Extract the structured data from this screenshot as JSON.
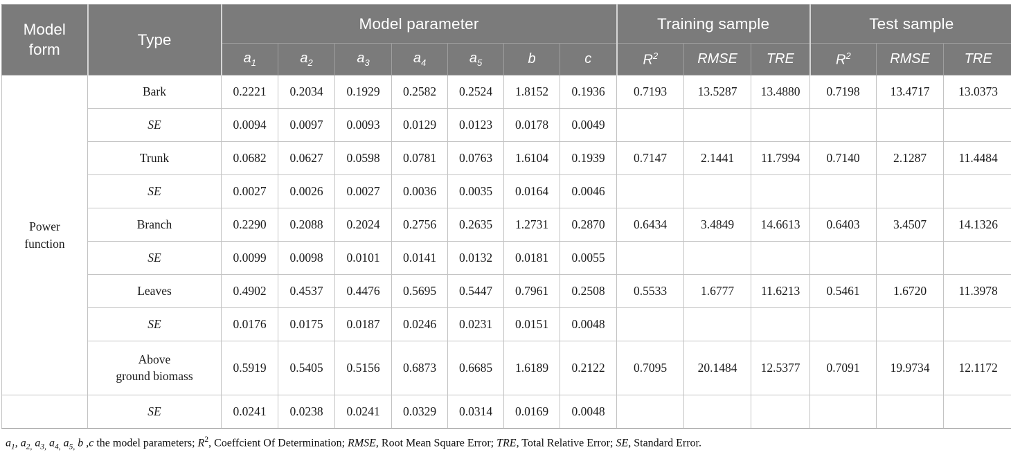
{
  "colors": {
    "header_bg": "#7b7b7b",
    "header_text": "#ffffff",
    "body_text": "#1b1b1b",
    "grid_line": "#c3c3c3"
  },
  "header": {
    "col1": "Model\nform",
    "col2": "Type",
    "groups": {
      "model_parameter": "Model parameter",
      "training_sample": "Training sample",
      "test_sample": "Test sample"
    },
    "param_columns": [
      {
        "base": "a",
        "sub": "1"
      },
      {
        "base": "a",
        "sub": "2"
      },
      {
        "base": "a",
        "sub": "3"
      },
      {
        "base": "a",
        "sub": "4"
      },
      {
        "base": "a",
        "sub": "5"
      },
      {
        "base": "b"
      },
      {
        "base": "c"
      }
    ],
    "training_columns": [
      {
        "base": "R",
        "sup": "2"
      },
      {
        "base": "RMSE"
      },
      {
        "base": "TRE"
      }
    ],
    "test_columns": [
      {
        "base": "R",
        "sup": "2"
      },
      {
        "base": "RMSE"
      },
      {
        "base": "TRE"
      }
    ]
  },
  "body": {
    "model_form_value": "Power\nfunction",
    "rows": [
      {
        "type": "Bark",
        "se": false,
        "tall": false,
        "params": [
          "0.2221",
          "0.2034",
          "0.1929",
          "0.2582",
          "0.2524",
          "1.8152",
          "0.1936"
        ],
        "training": [
          "0.7193",
          "13.5287",
          "13.4880"
        ],
        "test": [
          "0.7198",
          "13.4717",
          "13.0373"
        ]
      },
      {
        "type": "SE",
        "se": true,
        "tall": false,
        "params": [
          "0.0094",
          "0.0097",
          "0.0093",
          "0.0129",
          "0.0123",
          "0.0178",
          "0.0049"
        ],
        "training": [
          "",
          "",
          ""
        ],
        "test": [
          "",
          "",
          ""
        ]
      },
      {
        "type": "Trunk",
        "se": false,
        "tall": false,
        "params": [
          "0.0682",
          "0.0627",
          "0.0598",
          "0.0781",
          "0.0763",
          "1.6104",
          "0.1939"
        ],
        "training": [
          "0.7147",
          "2.1441",
          "11.7994"
        ],
        "test": [
          "0.7140",
          "2.1287",
          "11.4484"
        ]
      },
      {
        "type": "SE",
        "se": true,
        "tall": false,
        "params": [
          "0.0027",
          "0.0026",
          "0.0027",
          "0.0036",
          "0.0035",
          "0.0164",
          "0.0046"
        ],
        "training": [
          "",
          "",
          ""
        ],
        "test": [
          "",
          "",
          ""
        ]
      },
      {
        "type": "Branch",
        "se": false,
        "tall": false,
        "params": [
          "0.2290",
          "0.2088",
          "0.2024",
          "0.2756",
          "0.2635",
          "1.2731",
          "0.2870"
        ],
        "training": [
          "0.6434",
          "3.4849",
          "14.6613"
        ],
        "test": [
          "0.6403",
          "3.4507",
          "14.1326"
        ]
      },
      {
        "type": "SE",
        "se": true,
        "tall": false,
        "params": [
          "0.0099",
          "0.0098",
          "0.0101",
          "0.0141",
          "0.0132",
          "0.0181",
          "0.0055"
        ],
        "training": [
          "",
          "",
          ""
        ],
        "test": [
          "",
          "",
          ""
        ]
      },
      {
        "type": "Leaves",
        "se": false,
        "tall": false,
        "params": [
          "0.4902",
          "0.4537",
          "0.4476",
          "0.5695",
          "0.5447",
          "0.7961",
          "0.2508"
        ],
        "training": [
          "0.5533",
          "1.6777",
          "11.6213"
        ],
        "test": [
          "0.5461",
          "1.6720",
          "11.3978"
        ]
      },
      {
        "type": "SE",
        "se": true,
        "tall": false,
        "params": [
          "0.0176",
          "0.0175",
          "0.0187",
          "0.0246",
          "0.0231",
          "0.0151",
          "0.0048"
        ],
        "training": [
          "",
          "",
          ""
        ],
        "test": [
          "",
          "",
          ""
        ]
      },
      {
        "type": "Above\nground biomass",
        "se": false,
        "tall": true,
        "params": [
          "0.5919",
          "0.5405",
          "0.5156",
          "0.6873",
          "0.6685",
          "1.6189",
          "0.2122"
        ],
        "training": [
          "0.7095",
          "20.1484",
          "12.5377"
        ],
        "test": [
          "0.7091",
          "19.9734",
          "12.1172"
        ]
      },
      {
        "type": "SE",
        "se": true,
        "tall": false,
        "params": [
          "0.0241",
          "0.0238",
          "0.0241",
          "0.0329",
          "0.0314",
          "0.0169",
          "0.0048"
        ],
        "training": [
          "",
          "",
          ""
        ],
        "test": [
          "",
          "",
          ""
        ]
      }
    ]
  },
  "footnote": {
    "segments": [
      {
        "t": "a",
        "i": true
      },
      {
        "t": "1",
        "sub": true,
        "i": true
      },
      {
        "t": ", "
      },
      {
        "t": "a",
        "i": true
      },
      {
        "t": "2,",
        "sub": true,
        "i": true
      },
      {
        "t": " "
      },
      {
        "t": "a",
        "i": true
      },
      {
        "t": "3,",
        "sub": true,
        "i": true
      },
      {
        "t": " "
      },
      {
        "t": "a",
        "i": true
      },
      {
        "t": "4,",
        "sub": true,
        "i": true
      },
      {
        "t": " "
      },
      {
        "t": "a",
        "i": true
      },
      {
        "t": "5,",
        "sub": true,
        "i": true
      },
      {
        "t": " "
      },
      {
        "t": "b",
        "i": true
      },
      {
        "t": " ,"
      },
      {
        "t": "c",
        "i": true
      },
      {
        "t": " the model parameters; "
      },
      {
        "t": "R",
        "i": true
      },
      {
        "t": "2",
        "sup": true
      },
      {
        "t": ", Coeffcient Of Determination; "
      },
      {
        "t": "RMSE",
        "i": true
      },
      {
        "t": ", Root Mean Square Error; "
      },
      {
        "t": "TRE",
        "i": true
      },
      {
        "t": ", Total Relative Error; "
      },
      {
        "t": "SE",
        "i": true
      },
      {
        "t": ", Standard Error."
      }
    ]
  }
}
